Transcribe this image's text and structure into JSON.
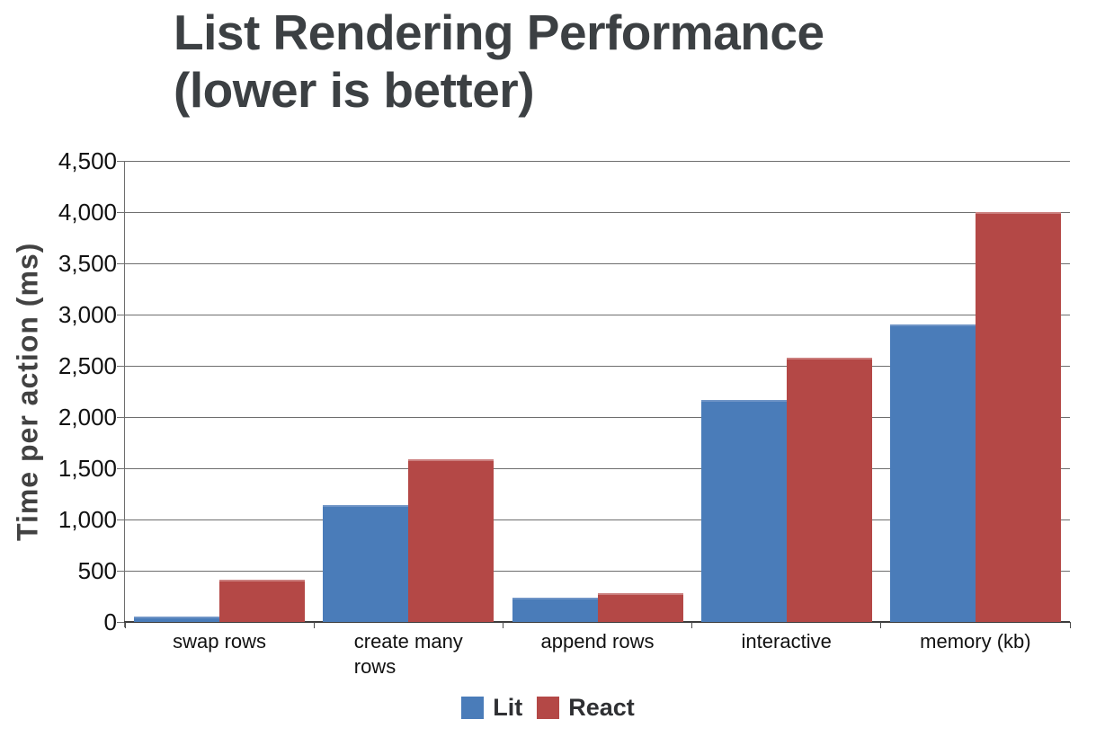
{
  "title": {
    "line1": "List Rendering Performance",
    "line2": "(lower is better)"
  },
  "chart_data": {
    "type": "bar",
    "title": "List Rendering Performance (lower is better)",
    "ylabel": "Time per action (ms)",
    "xlabel": "",
    "categories": [
      "swap rows",
      "create many\nrows",
      "append rows",
      "interactive",
      "memory (kb)"
    ],
    "series": [
      {
        "name": "Lit",
        "color": "#4a7cb9",
        "highlight": "#6f94c6",
        "values": [
          50,
          1140,
          240,
          2170,
          2900
        ]
      },
      {
        "name": "React",
        "color": "#b44846",
        "highlight": "#cb7e7d",
        "values": [
          410,
          1590,
          280,
          2580,
          4000
        ]
      }
    ],
    "ylim": [
      0,
      4500
    ],
    "ytick_step": 500,
    "ytick_labels": [
      "0",
      "500",
      "1,000",
      "1,500",
      "2,000",
      "2,500",
      "3,000",
      "3,500",
      "4,000",
      "4,500"
    ],
    "grid": true,
    "legend_position": "bottom"
  },
  "colors": {
    "title_text": "#3c4043",
    "axis_text": "#111111",
    "y_title_text": "#424242",
    "gridline": "#6e6e6e",
    "baseline": "#3c3c3c",
    "legend_text": "#2f3033"
  }
}
